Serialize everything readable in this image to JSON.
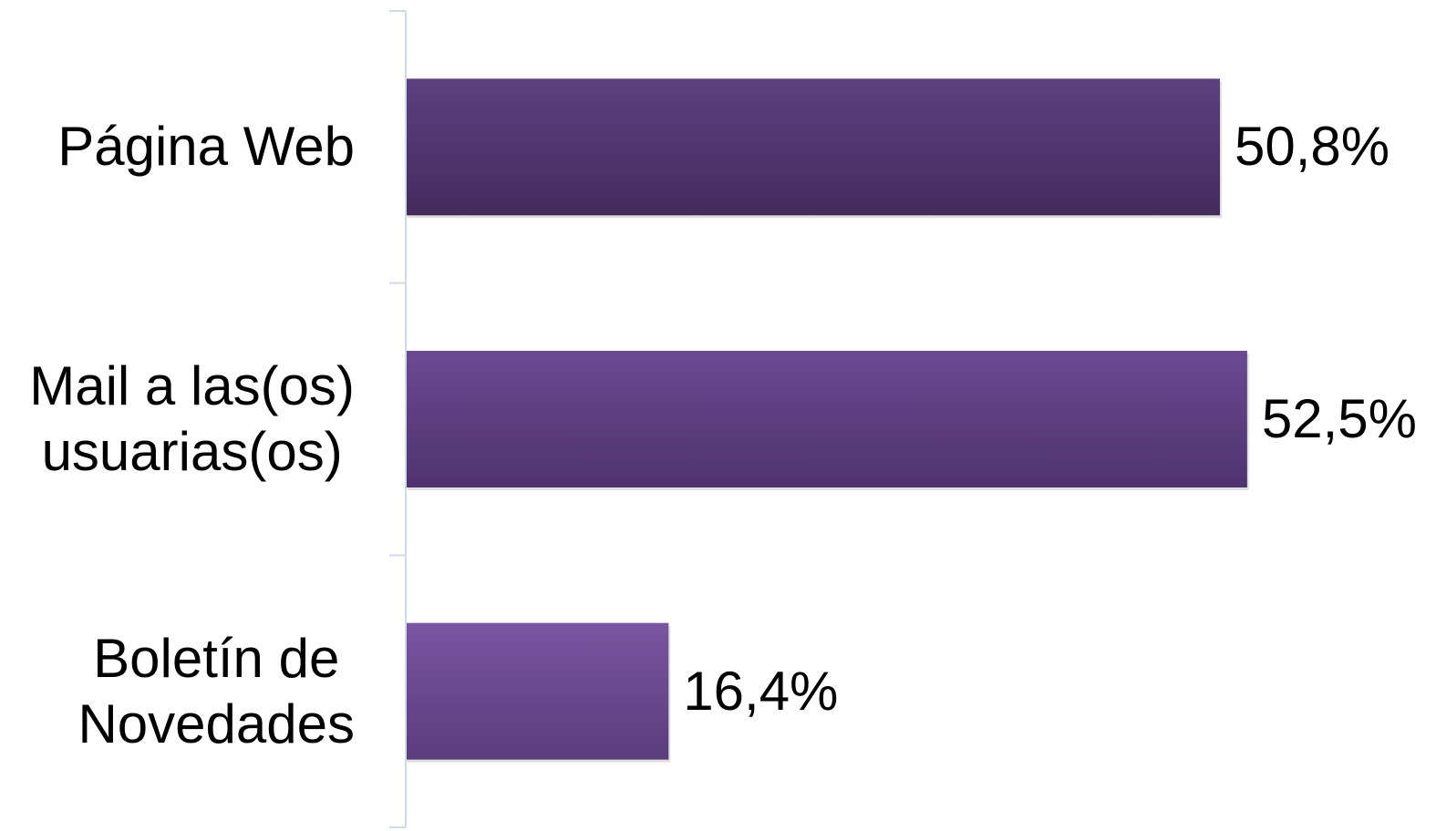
{
  "chart_data": {
    "type": "bar",
    "orientation": "horizontal",
    "categories": [
      "Página Web",
      "Mail a las(os)\nusuarias(os)",
      "Boletín de\nNovedades"
    ],
    "values": [
      50.8,
      52.5,
      16.4
    ],
    "value_labels": [
      "50,8%",
      "52,5%",
      "16,4%"
    ],
    "title": "",
    "xlabel": "",
    "ylabel": "",
    "xlim": [
      0,
      54
    ],
    "grid": false,
    "legend": "none",
    "colors": {
      "bar_light": [
        "#5d4080",
        "#6a4a91",
        "#7a55a0"
      ],
      "bar_dark": [
        "#432b5c",
        "#4f336f",
        "#5a3d7d"
      ],
      "axis": "#cfdbe8",
      "text": "#000000"
    }
  }
}
